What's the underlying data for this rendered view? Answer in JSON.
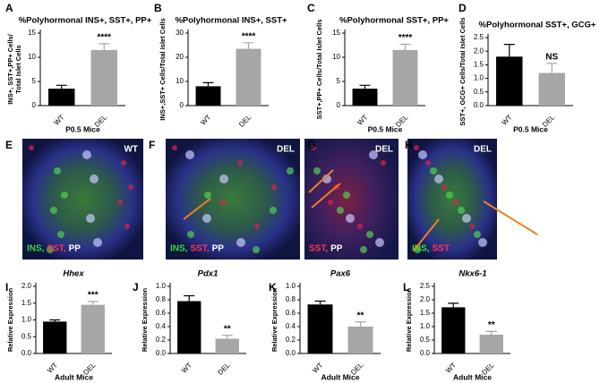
{
  "chart_data": [
    {
      "type": "bar",
      "panel": "A",
      "title": "%Polyhormonal INS+, SST+, PP+",
      "ylabel": [
        "INS+, SST+,PP+ Cells/",
        "Total Islet Cells"
      ],
      "xlabel": "P0.5 Mice",
      "categories": [
        "WT",
        "DEL"
      ],
      "values": [
        3.5,
        11.5
      ],
      "errors": [
        0.7,
        1.3
      ],
      "colors": [
        "#000000",
        "#a6a6a6"
      ],
      "annotation": "****",
      "ylim": [
        0,
        15
      ],
      "yticks": [
        0,
        5,
        10,
        15
      ]
    },
    {
      "type": "bar",
      "panel": "B",
      "title": "%Polyhormonal INS+, SST+",
      "ylabel": [
        "INS+,SST+ Cells/Total Islet Cells"
      ],
      "categories": [
        "WT",
        "DEL"
      ],
      "values": [
        8,
        23.5
      ],
      "errors": [
        1.5,
        2.5
      ],
      "colors": [
        "#000000",
        "#a6a6a6"
      ],
      "annotation": "****",
      "ylim": [
        0,
        30
      ],
      "yticks": [
        0,
        10,
        20,
        30
      ]
    },
    {
      "type": "bar",
      "panel": "C",
      "title": "%Polyhormonal SST+, PP+",
      "ylabel": [
        "SST+,PP+ Cells/Total Islet Cells"
      ],
      "xlabel": "P0.5 Mice",
      "categories": [
        "WT",
        "DEL"
      ],
      "values": [
        3.5,
        11.5
      ],
      "errors": [
        0.7,
        1.2
      ],
      "colors": [
        "#000000",
        "#a6a6a6"
      ],
      "annotation": "****",
      "ylim": [
        0,
        15
      ],
      "yticks": [
        0,
        5,
        10,
        15
      ]
    },
    {
      "type": "bar",
      "panel": "D",
      "title": "%Polyhormonal SST+,  GCG+",
      "ylabel": [
        "SST+, GCG+ Cells/Total Islet  Cells"
      ],
      "xlabel": "P0.5 Mice",
      "categories": [
        "WT",
        "DEL"
      ],
      "values": [
        1.8,
        1.2
      ],
      "errors": [
        0.45,
        0.35
      ],
      "colors": [
        "#000000",
        "#a6a6a6"
      ],
      "annotation": "NS",
      "ylim": [
        0,
        2.5
      ],
      "yticks": [
        {
          "value": 0,
          "label": "0.0"
        },
        0.5,
        {
          "value": 1,
          "label": "1.0"
        },
        1.5,
        {
          "value": 2,
          "label": "2.0"
        },
        2.5
      ]
    },
    {
      "type": "bar",
      "panel": "I",
      "title": "Hhex",
      "ylabel": [
        "Relative Expression"
      ],
      "xlabel": "Adult Mice",
      "categories": [
        "WT",
        "DEL"
      ],
      "values": [
        0.95,
        1.45
      ],
      "errors": [
        0.05,
        0.1
      ],
      "colors": [
        "#000000",
        "#a6a6a6"
      ],
      "annotation": "***",
      "ylim": [
        0,
        2
      ],
      "yticks": [
        {
          "value": 0,
          "label": "0.0"
        },
        0.5,
        {
          "value": 1,
          "label": "1.0"
        },
        1.5,
        {
          "value": 2,
          "label": "2.0"
        }
      ]
    },
    {
      "type": "bar",
      "panel": "J",
      "title": "Pdx1",
      "ylabel": [
        "Relative Expression"
      ],
      "categories": [
        "WT",
        "DEL"
      ],
      "values": [
        0.78,
        0.22
      ],
      "errors": [
        0.08,
        0.05
      ],
      "colors": [
        "#000000",
        "#a6a6a6"
      ],
      "annotation": "**",
      "ylim": [
        0,
        1
      ],
      "yticks": [
        {
          "value": 0,
          "label": "0.0"
        },
        0.2,
        0.4,
        0.6,
        0.8,
        {
          "value": 1,
          "label": "1.0"
        }
      ]
    },
    {
      "type": "bar",
      "panel": "K",
      "title": "Pax6",
      "ylabel": [
        "Relative Expression"
      ],
      "xlabel": "Adult Mice",
      "categories": [
        "WT",
        "DEL"
      ],
      "values": [
        0.73,
        0.4
      ],
      "errors": [
        0.05,
        0.07
      ],
      "colors": [
        "#000000",
        "#a6a6a6"
      ],
      "annotation": "**",
      "ylim": [
        0,
        1
      ],
      "yticks": [
        {
          "value": 0,
          "label": "0.0"
        },
        0.2,
        0.4,
        0.6,
        0.8,
        {
          "value": 1,
          "label": "1.0"
        }
      ]
    },
    {
      "type": "bar",
      "panel": "L",
      "title": "Nkx6-1",
      "ylabel": [
        "Relative Expression"
      ],
      "xlabel": "Adult Mice",
      "categories": [
        "WT",
        "DEL"
      ],
      "values": [
        1.72,
        0.7
      ],
      "errors": [
        0.15,
        0.12
      ],
      "colors": [
        "#000000",
        "#a6a6a6"
      ],
      "annotation": "**",
      "ylim": [
        0,
        2.5
      ],
      "yticks": [
        {
          "value": 0,
          "label": "0.0"
        },
        0.5,
        {
          "value": 1,
          "label": "1.0"
        },
        1.5,
        {
          "value": 2,
          "label": "2.0"
        },
        2.5
      ]
    }
  ],
  "images": [
    {
      "panel": "E",
      "label": "WT",
      "caption": [
        {
          "text": "INS,",
          "color": "#33dd44"
        },
        {
          "text": "SST,",
          "color": "#ff3355"
        },
        {
          "text": "PP",
          "color": "#ffffff"
        }
      ]
    },
    {
      "panel": "F",
      "label": "DEL",
      "caption": [
        {
          "text": "INS,",
          "color": "#33dd44"
        },
        {
          "text": "SST,",
          "color": "#ff3355"
        },
        {
          "text": "PP",
          "color": "#ffffff"
        }
      ]
    },
    {
      "panel": "G",
      "label": "DEL",
      "caption": [
        {
          "text": "SST,",
          "color": "#ff3355"
        },
        {
          "text": "PP",
          "color": "#ffffff"
        }
      ]
    },
    {
      "panel": "H",
      "label": "DEL",
      "caption": [
        {
          "text": "INS,",
          "color": "#33dd44"
        },
        {
          "text": "SST",
          "color": "#ff3355"
        }
      ]
    }
  ]
}
